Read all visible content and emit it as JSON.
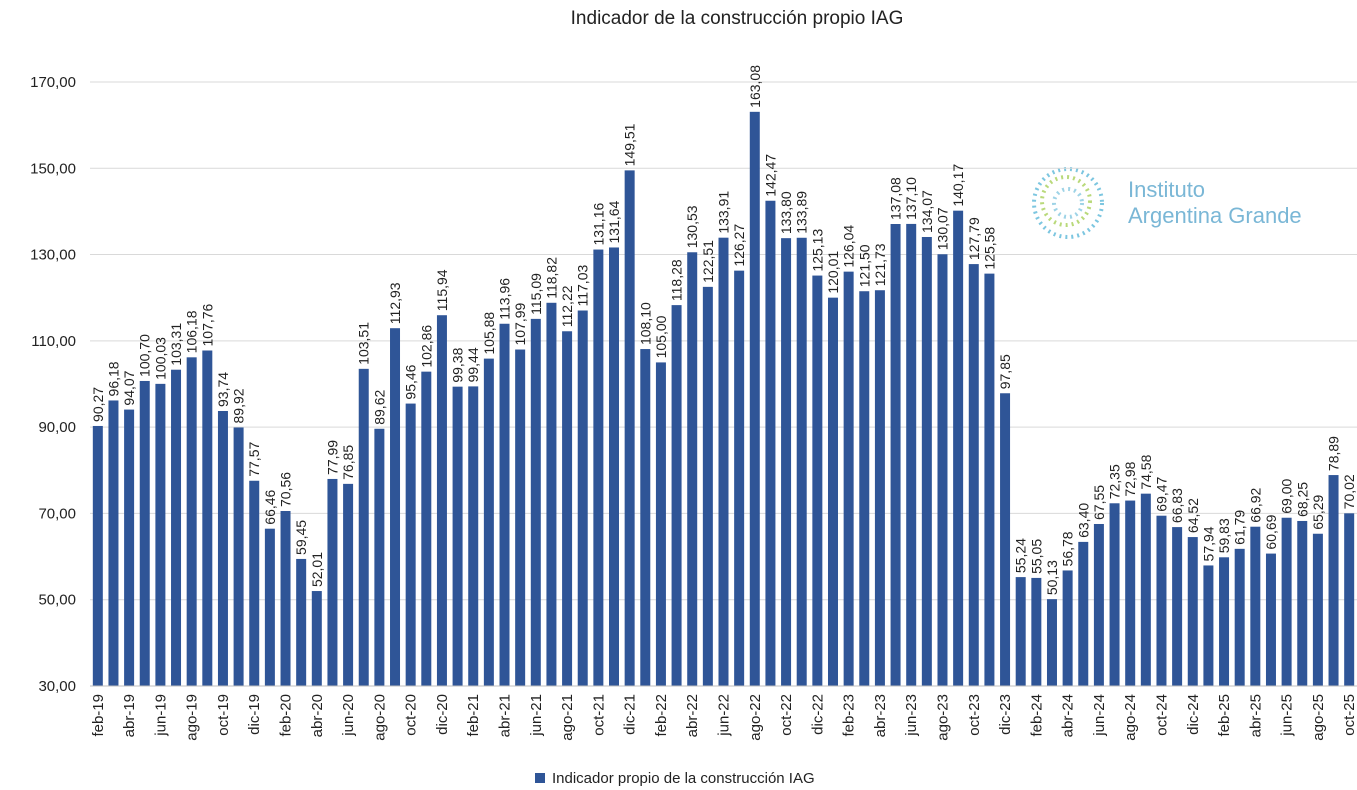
{
  "chart_data": {
    "type": "bar",
    "title": "Indicador  de la construcción  propio IAG",
    "categories": [
      "feb-19",
      null,
      "abr-19",
      null,
      "jun-19",
      null,
      "ago-19",
      null,
      "oct-19",
      null,
      "dic-19",
      null,
      "feb-20",
      null,
      "abr-20",
      null,
      "jun-20",
      null,
      "ago-20",
      null,
      "oct-20",
      null,
      "dic-20",
      null,
      "feb-21",
      null,
      "abr-21",
      null,
      "jun-21",
      null,
      "ago-21",
      null,
      "oct-21",
      null,
      "dic-21",
      null,
      "feb-22",
      null,
      "abr-22",
      null,
      "jun-22",
      null,
      "ago-22",
      null,
      "oct-22",
      null,
      "dic-22",
      null,
      "feb-23",
      null,
      "abr-23",
      null,
      "jun-23",
      null,
      "ago-23",
      null,
      "oct-23",
      null,
      "dic-23",
      null,
      "feb-24",
      null,
      "abr-24",
      null,
      "jun-24",
      null,
      "ago-24",
      null,
      "oct-24",
      null,
      "dic-24",
      null,
      "feb-25",
      null,
      "abr-25",
      null,
      "jun-25",
      null,
      "ago-25",
      null,
      "oct-25"
    ],
    "series": [
      {
        "name": "Indicador propio de la construcción IAG",
        "color": "#2f5597",
        "values": [
          90.27,
          96.18,
          94.07,
          100.7,
          100.03,
          103.31,
          106.18,
          107.76,
          93.74,
          89.92,
          77.57,
          66.46,
          70.56,
          59.45,
          52.01,
          77.99,
          76.85,
          103.51,
          89.62,
          112.93,
          95.46,
          102.86,
          115.94,
          99.38,
          99.44,
          105.88,
          113.96,
          107.99,
          115.09,
          118.82,
          112.22,
          117.03,
          131.16,
          131.64,
          149.51,
          108.1,
          105.0,
          118.28,
          130.53,
          122.51,
          133.91,
          126.27,
          163.08,
          142.47,
          133.8,
          133.89,
          125.13,
          120.01,
          126.04,
          121.5,
          121.73,
          137.08,
          137.1,
          134.07,
          130.07,
          140.17,
          127.79,
          125.58,
          97.85,
          55.24,
          55.05,
          50.13,
          56.78,
          63.4,
          67.55,
          72.35,
          72.98,
          74.58,
          69.47,
          66.83,
          64.52,
          57.94,
          59.83,
          61.79,
          66.92,
          60.69,
          69.0,
          68.25,
          65.29,
          78.89,
          70.02
        ],
        "value_labels": [
          "90,27",
          "96,18",
          "94,07",
          "100,70",
          "100,03",
          "103,31",
          "106,18",
          "107,76",
          "93,74",
          "89,92",
          "77,57",
          "66,46",
          "70,56",
          "59,45",
          "52,01",
          "77,99",
          "76,85",
          "103,51",
          "89,62",
          "112,93",
          "95,46",
          "102,86",
          "115,94",
          "99,38",
          "99,44",
          "105,88",
          "113,96",
          "107,99",
          "115,09",
          "118,82",
          "112,22",
          "117,03",
          "131,16",
          "131,64",
          "149,51",
          "108,10",
          "105,00",
          "118,28",
          "130,53",
          "122,51",
          "133,91",
          "126,27",
          "163,08",
          "142,47",
          "133,80",
          "133,89",
          "125,13",
          "120,01",
          "126,04",
          "121,50",
          "121,73",
          "137,08",
          "137,10",
          "134,07",
          "130,07",
          "140,17",
          "127,79",
          "125,58",
          "97,85",
          "55,24",
          "55,05",
          "50,13",
          "56,78",
          "63,40",
          "67,55",
          "72,35",
          "72,98",
          "74,58",
          "69,47",
          "66,83",
          "64,52",
          "57,94",
          "59,83",
          "61,79",
          "66,92",
          "60,69",
          "69,00",
          "68,25",
          "65,29",
          "78,89",
          "70,02"
        ]
      }
    ],
    "ylim": [
      30,
      175
    ],
    "yticks": [
      {
        "value": 30,
        "label": "30,00"
      },
      {
        "value": 50,
        "label": "50,00"
      },
      {
        "value": 70,
        "label": "70,00"
      },
      {
        "value": 90,
        "label": "90,00"
      },
      {
        "value": 110,
        "label": "110,00"
      },
      {
        "value": 130,
        "label": "130,00"
      },
      {
        "value": 150,
        "label": "150,00"
      },
      {
        "value": 170,
        "label": "170,00"
      }
    ],
    "grid": true,
    "legend": "bottom",
    "logo": [
      "Instituto",
      "Argentina Grande"
    ]
  }
}
